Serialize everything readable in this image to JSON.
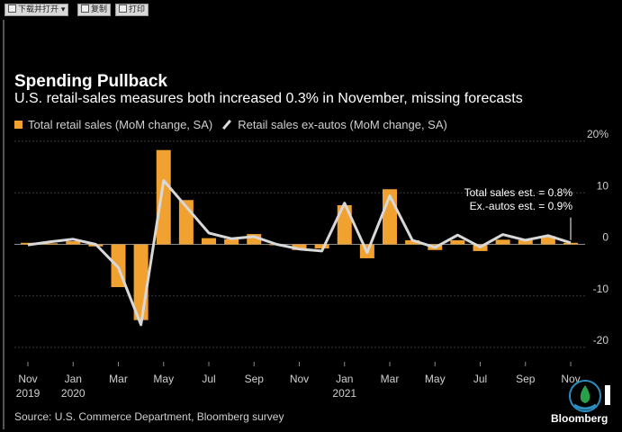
{
  "toolbar": {
    "buttons": [
      {
        "label": "下载并打开",
        "icon": "save-icon"
      },
      {
        "label": "复制",
        "icon": "copy-icon"
      },
      {
        "label": "打印",
        "icon": "print-icon"
      }
    ]
  },
  "chart_data": {
    "type": "bar",
    "title": "Spending Pullback",
    "subtitle": "U.S. retail-sales measures both increased 0.3% in November, missing forecasts",
    "categories": [
      "Nov 2019",
      "Dec 2019",
      "Jan 2020",
      "Feb 2020",
      "Mar 2020",
      "Apr 2020",
      "May 2020",
      "Jun 2020",
      "Jul 2020",
      "Aug 2020",
      "Sep 2020",
      "Oct 2020",
      "Nov 2020",
      "Dec 2020",
      "Jan 2021",
      "Feb 2021",
      "Mar 2021",
      "Apr 2021",
      "May 2021",
      "Jun 2021",
      "Jul 2021",
      "Aug 2021",
      "Sep 2021",
      "Oct 2021",
      "Nov 2021"
    ],
    "series": [
      {
        "name": "Total retail sales (MoM change, SA)",
        "type": "bar",
        "color": "#f0a130",
        "values": [
          0.3,
          0.2,
          0.6,
          -0.4,
          -8.3,
          -14.7,
          18.3,
          8.6,
          1.2,
          1.0,
          2.0,
          -0.1,
          -1.1,
          -0.8,
          7.6,
          -2.7,
          10.7,
          0.8,
          -1.1,
          0.8,
          -1.3,
          0.9,
          0.8,
          1.6,
          0.3
        ]
      },
      {
        "name": "Retail sales ex-autos (MoM change, SA)",
        "type": "line",
        "color": "#d8d8d8",
        "values": [
          -0.1,
          0.5,
          1.0,
          0.0,
          -4.5,
          -15.6,
          12.4,
          7.3,
          2.2,
          1.1,
          1.5,
          0.0,
          -0.9,
          -1.3,
          8.0,
          -1.6,
          9.4,
          0.8,
          -0.6,
          1.8,
          -0.5,
          1.9,
          0.8,
          1.7,
          0.3
        ]
      }
    ],
    "x_tick_labels": [
      {
        "index": 0,
        "month": "Nov",
        "year": "2019"
      },
      {
        "index": 2,
        "month": "Jan",
        "year": "2020"
      },
      {
        "index": 4,
        "month": "Mar",
        "year": ""
      },
      {
        "index": 6,
        "month": "May",
        "year": ""
      },
      {
        "index": 8,
        "month": "Jul",
        "year": ""
      },
      {
        "index": 10,
        "month": "Sep",
        "year": ""
      },
      {
        "index": 12,
        "month": "Nov",
        "year": ""
      },
      {
        "index": 14,
        "month": "Jan",
        "year": "2021"
      },
      {
        "index": 16,
        "month": "Mar",
        "year": ""
      },
      {
        "index": 18,
        "month": "May",
        "year": ""
      },
      {
        "index": 20,
        "month": "Jul",
        "year": ""
      },
      {
        "index": 22,
        "month": "Sep",
        "year": ""
      },
      {
        "index": 24,
        "month": "Nov",
        "year": ""
      }
    ],
    "y_ticks": [
      {
        "value": 20,
        "label": "20%"
      },
      {
        "value": 10,
        "label": "10"
      },
      {
        "value": 0,
        "label": "0"
      },
      {
        "value": -10,
        "label": "-10"
      },
      {
        "value": -20,
        "label": "-20"
      }
    ],
    "ylim": [
      -20,
      20
    ],
    "grid": true,
    "legend_position": "top-left",
    "annotation": {
      "lines": [
        "Total sales est. = 0.8%",
        "Ex.-autos est. = 0.9%"
      ],
      "index": 24,
      "from": 0.3,
      "to": 0.85
    },
    "source": "Source: U.S. Commerce Department, Bloomberg survey",
    "brand": "Bloomberg"
  }
}
